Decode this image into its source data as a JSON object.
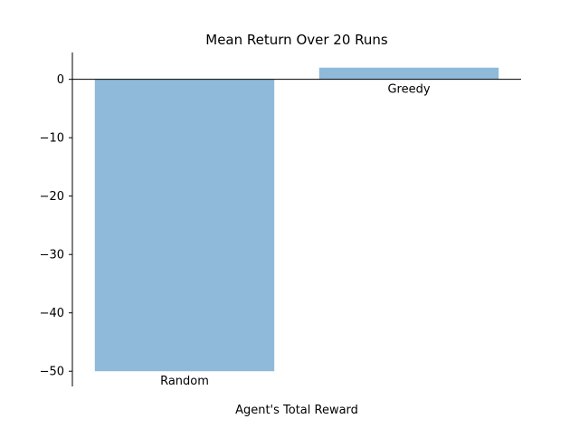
{
  "chart_data": {
    "type": "bar",
    "title": "Mean Return Over 20 Runs",
    "xlabel": "Agent's Total Reward",
    "ylabel": "",
    "categories": [
      "Random",
      "Greedy"
    ],
    "values": [
      -50,
      2
    ],
    "ylim": [
      -52.6,
      4.6
    ],
    "yticks": [
      0,
      -10,
      -20,
      -30,
      -40,
      -50
    ],
    "ytick_labels": [
      "0",
      "−10",
      "−20",
      "−30",
      "−40",
      "−50"
    ],
    "bar_color": "#8fbad9",
    "grid": false,
    "legend": "none"
  }
}
